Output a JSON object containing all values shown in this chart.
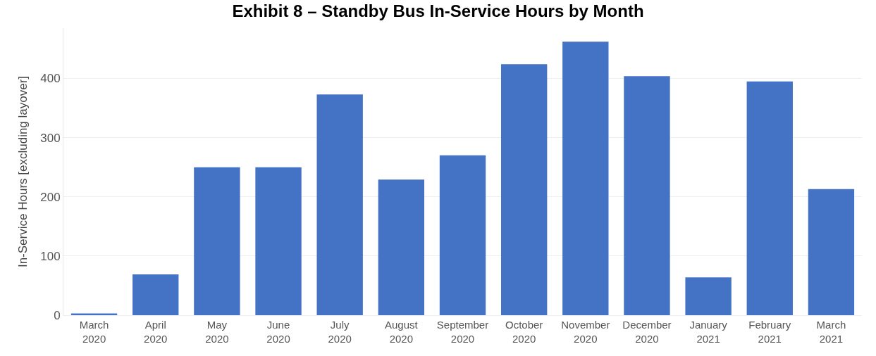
{
  "chart_data": {
    "type": "bar",
    "title": "Exhibit 8 – Standby Bus In-Service Hours by Month",
    "ylabel": "In-Service Hours [excluding layover]",
    "categories": [
      "March 2020",
      "April 2020",
      "May 2020",
      "June 2020",
      "July 2020",
      "August 2020",
      "September 2020",
      "October 2020",
      "November 2020",
      "December 2020",
      "January 2021",
      "February 2021",
      "March 2021"
    ],
    "values": [
      3,
      69,
      250,
      250,
      373,
      229,
      270,
      424,
      462,
      404,
      64,
      395,
      213
    ],
    "color": "#4472c4",
    "ylim": [
      0,
      485
    ],
    "yticks": [
      0,
      100,
      200,
      300,
      400
    ],
    "grid": "y"
  }
}
